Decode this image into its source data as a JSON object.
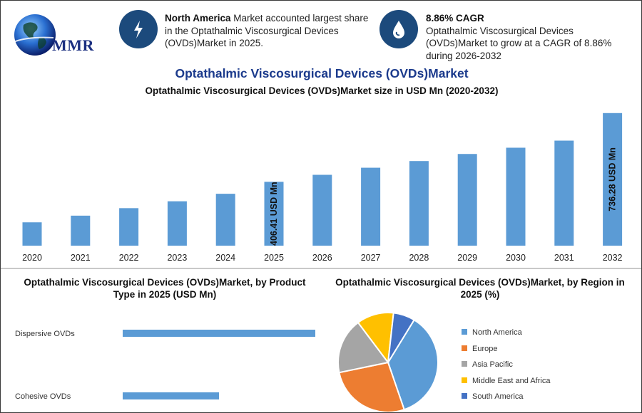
{
  "logo": {
    "text": "MMR"
  },
  "highlights": [
    {
      "bold": "North America",
      "text": " Market accounted largest share in the Optathalmic Viscosurgical Devices (OVDs)Market in 2025.",
      "icon": "lightning-icon"
    },
    {
      "bold": "8.86% CAGR",
      "text": "Optathalmic Viscosurgical Devices (OVDs)Market to grow at a CAGR of 8.86% during 2026-2032",
      "icon": "drop-icon"
    }
  ],
  "title": "Optathalmic Viscosurgical Devices (OVDs)Market",
  "subtitle": "Optathalmic Viscosurgical Devices (OVDs)Market size in USD Mn (2020-2032)",
  "product_title": "Optathalmic Viscosurgical Devices (OVDs)Market, by Product Type in 2025 (USD Mn)",
  "region_title": "Optathalmic Viscosurgical Devices (OVDs)Market, by Region in 2025 (%)",
  "colors": {
    "bar": "#5b9bd5",
    "title": "#1b3a8c",
    "icon_bg": "#1c4a7c"
  },
  "chart_data": [
    {
      "type": "bar",
      "title": "Optathalmic Viscosurgical Devices (OVDs)Market size in USD Mn (2020-2032)",
      "categories": [
        "2020",
        "2021",
        "2022",
        "2023",
        "2024",
        "2025",
        "2026",
        "2027",
        "2028",
        "2029",
        "2030",
        "2031",
        "2032"
      ],
      "values": [
        212,
        244,
        280,
        313,
        349,
        406.41,
        440,
        474,
        506,
        540,
        570,
        604,
        736.28
      ],
      "ylim": [
        100,
        780
      ],
      "data_labels": [
        {
          "category": "2025",
          "text": "406.41 USD Mn"
        },
        {
          "category": "2032",
          "text": "736.28 USD Mn"
        }
      ],
      "color": "#5b9bd5",
      "grid": false
    },
    {
      "type": "bar",
      "orientation": "horizontal",
      "title": "Optathalmic Viscosurgical Devices (OVDs)Market, by Product Type in 2025 (USD Mn)",
      "categories": [
        "Dispersive OVDs",
        "Cohesive OVDs"
      ],
      "values": [
        270,
        135
      ],
      "xlim": [
        0,
        300
      ],
      "color": "#5b9bd5"
    },
    {
      "type": "pie",
      "title": "Optathalmic Viscosurgical Devices (OVDs)Market, by Region in 2025 (%)",
      "categories": [
        "North America",
        "Europe",
        "Asia Pacific",
        "Middle East and Africa",
        "South America"
      ],
      "values": [
        36,
        27,
        18,
        12,
        7
      ],
      "colors": [
        "#5b9bd5",
        "#ed7d31",
        "#a5a5a5",
        "#ffc000",
        "#4472c4"
      ],
      "legend": "right"
    }
  ]
}
